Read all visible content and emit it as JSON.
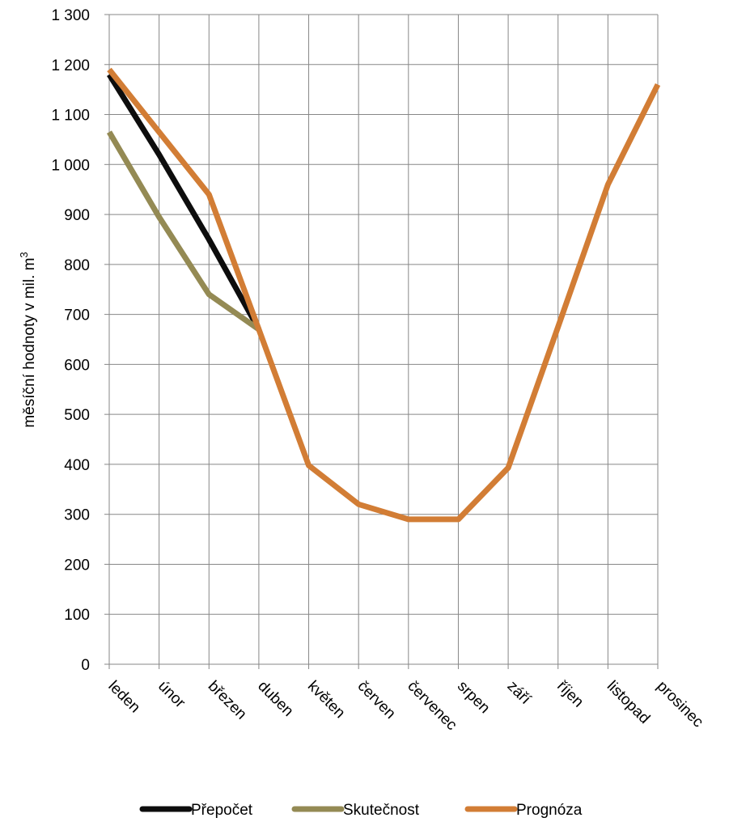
{
  "chart_data": {
    "type": "line",
    "ylabel": "měsíční hodnoty v mil. m",
    "ylabel_superscript": "3",
    "ylim": [
      0,
      1300
    ],
    "ytick_step": 100,
    "ytick_labels": [
      "0",
      "100",
      "200",
      "300",
      "400",
      "500",
      "600",
      "700",
      "800",
      "900",
      "1 000",
      "1 100",
      "1 200",
      "1 300"
    ],
    "categories": [
      "leden",
      "únor",
      "březen",
      "duben",
      "květen",
      "červen",
      "červenec",
      "srpen",
      "září",
      "říjen",
      "listopad",
      "prosinec"
    ],
    "grid": true,
    "legend_position": "bottom",
    "series": [
      {
        "name": "Přepočet",
        "color": "#0d0d0d",
        "values": [
          1180,
          1020,
          850,
          670,
          null,
          null,
          null,
          null,
          null,
          null,
          null,
          null
        ]
      },
      {
        "name": "Skutečnost",
        "color": "#948a54",
        "values": [
          1065,
          895,
          740,
          670,
          null,
          null,
          null,
          null,
          null,
          null,
          null,
          null
        ]
      },
      {
        "name": "Prognóza",
        "color": "#d27d35",
        "values": [
          1190,
          1065,
          940,
          670,
          398,
          320,
          290,
          290,
          393,
          675,
          960,
          1160
        ]
      }
    ]
  }
}
